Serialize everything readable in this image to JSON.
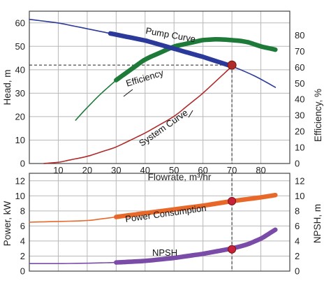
{
  "chart_data": [
    {
      "type": "line",
      "panel": "top",
      "xlabel": "Flowrate, m³/hr",
      "ylabel_left": "Head, m",
      "ylabel_right": "Efficiency, %",
      "xlim": [
        0,
        90
      ],
      "ylim_left": [
        0,
        65
      ],
      "ylim_right": [
        0,
        95
      ],
      "x_ticks": [
        "10",
        "20",
        "30",
        "40",
        "50",
        "60",
        "70",
        "80"
      ],
      "y_left_ticks": [
        "0",
        "10",
        "20",
        "30",
        "40",
        "50",
        "60"
      ],
      "y_right_ticks": [
        "0",
        "10",
        "20",
        "30",
        "40",
        "50",
        "60",
        "70",
        "80"
      ],
      "grid": true,
      "series": [
        {
          "name": "Pump Curve",
          "axis": "left",
          "color": "#2b3a9a",
          "x": [
            0,
            10,
            20,
            28,
            40,
            50,
            60,
            70,
            76,
            80,
            85
          ],
          "y": [
            61.5,
            60,
            57.5,
            55.5,
            52.5,
            49,
            45.5,
            41.5,
            38.5,
            36,
            32.5
          ],
          "highlight_x": [
            28,
            70
          ]
        },
        {
          "name": "Efficiency",
          "axis": "right",
          "color": "#1e7a38",
          "x": [
            16,
            20,
            25,
            30,
            40,
            50,
            60,
            65,
            70,
            75,
            80,
            85
          ],
          "y": [
            27,
            35,
            44,
            52,
            65,
            73,
            77,
            77.5,
            77,
            76,
            73,
            71
          ],
          "highlight_x": [
            30,
            85
          ]
        },
        {
          "name": "System Curve",
          "axis": "left",
          "color": "#b02a2a",
          "x": [
            5,
            10,
            20,
            30,
            40,
            50,
            60,
            70
          ],
          "y": [
            0,
            0.5,
            3,
            7,
            13,
            20,
            30,
            41.5
          ]
        }
      ],
      "operating_point": {
        "x": 70,
        "y": 42,
        "color": "#b02a2a"
      }
    },
    {
      "type": "line",
      "panel": "bottom",
      "ylabel_left": "Power, kW",
      "ylabel_right": "NPSH, m",
      "xlim": [
        0,
        90
      ],
      "ylim_left": [
        0,
        13
      ],
      "ylim_right": [
        0,
        13
      ],
      "y_left_ticks": [
        "0",
        "2",
        "4",
        "6",
        "8",
        "10",
        "12"
      ],
      "y_right_ticks": [
        "0",
        "2",
        "4",
        "6",
        "8",
        "10",
        "12"
      ],
      "grid": true,
      "series": [
        {
          "name": "Power Consumption",
          "axis": "left",
          "color": "#e8682a",
          "x": [
            0,
            10,
            20,
            30,
            40,
            50,
            60,
            70,
            80,
            85
          ],
          "y": [
            6.5,
            6.6,
            6.7,
            7.2,
            7.7,
            8.2,
            8.7,
            9.3,
            9.8,
            10.1
          ],
          "highlight_x": [
            30,
            85
          ]
        },
        {
          "name": "NPSH",
          "axis": "right",
          "color": "#7b4ba8",
          "x": [
            0,
            10,
            20,
            30,
            40,
            50,
            60,
            70,
            75,
            80,
            85
          ],
          "y": [
            1,
            1,
            1.05,
            1.15,
            1.35,
            1.75,
            2.3,
            3.0,
            3.5,
            4.3,
            5.5
          ],
          "highlight_x": [
            30,
            85
          ]
        }
      ],
      "operating_points": [
        {
          "series": "Power Consumption",
          "x": 70,
          "y": 9.3
        },
        {
          "series": "NPSH",
          "x": 70,
          "y": 2.9
        }
      ]
    }
  ]
}
